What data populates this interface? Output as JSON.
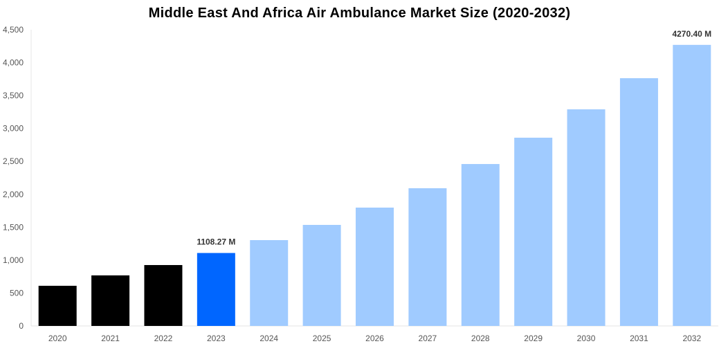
{
  "chart_data": {
    "type": "bar",
    "title": "Middle East And Africa Air Ambulance Market Size (2020-2032)",
    "xlabel": "",
    "ylabel": "",
    "categories": [
      "2020",
      "2021",
      "2022",
      "2023",
      "2024",
      "2025",
      "2026",
      "2027",
      "2028",
      "2029",
      "2030",
      "2031",
      "2032"
    ],
    "values": [
      610,
      768,
      925,
      1108.27,
      1304,
      1535,
      1798,
      2092,
      2460,
      2860,
      3291,
      3764,
      4270.4
    ],
    "ylim": [
      0,
      4500
    ],
    "yticks": [
      0,
      500,
      1000,
      1500,
      2000,
      2500,
      3000,
      3500,
      4000,
      4500
    ],
    "ytick_labels": [
      "0",
      "500",
      "1,000",
      "1,500",
      "2,000",
      "2,500",
      "3,000",
      "3,500",
      "4,000",
      "4,500"
    ],
    "data_labels": [
      {
        "category": "2023",
        "text": "1108.27 M"
      },
      {
        "category": "2032",
        "text": "4270.40 M"
      }
    ],
    "colors": {
      "historical": "#000000",
      "current": "#0066ff",
      "forecast": "#a0cbff"
    },
    "bar_color_groups": [
      "historical",
      "historical",
      "historical",
      "current",
      "forecast",
      "forecast",
      "forecast",
      "forecast",
      "forecast",
      "forecast",
      "forecast",
      "forecast",
      "forecast"
    ],
    "grid": false,
    "legend": "none"
  }
}
